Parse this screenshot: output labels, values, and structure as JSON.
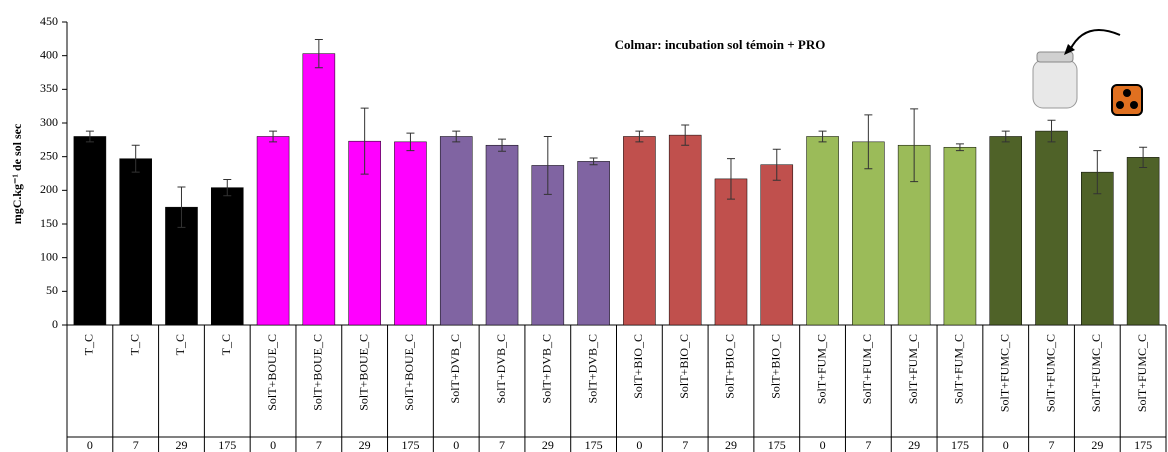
{
  "chart_data": {
    "type": "bar",
    "title": "Colmar: incubation sol témoin + PRO",
    "y_label": "mgC.kg⁻¹ de sol sec",
    "categories": [
      "T_C",
      "T_C",
      "T_C",
      "T_C",
      "SolT+BOUE_C",
      "SolT+BOUE_C",
      "SolT+BOUE_C",
      "SolT+BOUE_C",
      "SolT+DVB_C",
      "SolT+DVB_C",
      "SolT+DVB_C",
      "SolT+DVB_C",
      "SolT+BIO_C",
      "SolT+BIO_C",
      "SolT+BIO_C",
      "SolT+BIO_C",
      "SolT+FUM_C",
      "SolT+FUM_C",
      "SolT+FUM_C",
      "SolT+FUM_C",
      "SolT+FUMC_C",
      "SolT+FUMC_C",
      "SolT+FUMC_C",
      "SolT+FUMC_C"
    ],
    "days": [
      0,
      7,
      29,
      175,
      0,
      7,
      29,
      175,
      0,
      7,
      29,
      175,
      0,
      7,
      29,
      175,
      0,
      7,
      29,
      175,
      0,
      7,
      29,
      175
    ],
    "values": [
      280,
      247,
      175,
      204,
      280,
      403,
      273,
      272,
      280,
      267,
      237,
      243,
      280,
      282,
      217,
      238,
      280,
      272,
      267,
      264,
      280,
      288,
      227,
      249
    ],
    "errors": [
      8,
      20,
      30,
      12,
      8,
      21,
      49,
      13,
      8,
      9,
      43,
      5,
      8,
      15,
      30,
      23,
      8,
      40,
      54,
      5,
      8,
      16,
      32,
      15
    ],
    "colors": [
      "#000000",
      "#000000",
      "#000000",
      "#000000",
      "#ff00ff",
      "#ff00ff",
      "#ff00ff",
      "#ff00ff",
      "#8064a2",
      "#8064a2",
      "#8064a2",
      "#8064a2",
      "#c0504d",
      "#c0504d",
      "#c0504d",
      "#c0504d",
      "#9bbb59",
      "#9bbb59",
      "#9bbb59",
      "#9bbb59",
      "#4f6228",
      "#4f6228",
      "#4f6228",
      "#4f6228"
    ],
    "ylim": [
      0,
      450
    ],
    "yticks": [
      0,
      50,
      100,
      150,
      200,
      250,
      300,
      350,
      400,
      450
    ]
  }
}
